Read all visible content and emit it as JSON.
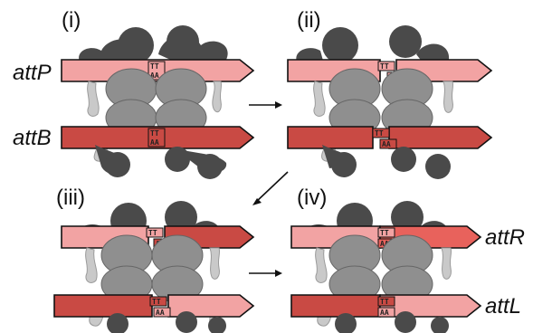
{
  "panels": [
    {
      "label": "(i)",
      "top": "attP",
      "bottom": "attB",
      "top_tt": "TT",
      "top_aa": "AA",
      "bot_tt": "TT",
      "bot_aa": "AA"
    },
    {
      "label": "(ii)",
      "top_tt": "TT",
      "top_aa": "AA",
      "bot_tt": "TT",
      "bot_aa": "AA"
    },
    {
      "label": "(iii)",
      "top_tt": "TT",
      "top_aa": "AA",
      "bot_tt": "TT",
      "bot_aa": "AA"
    },
    {
      "label": "(iv)",
      "top": "attR",
      "bottom": "attL",
      "top_tt": "TT",
      "top_aa": "AA",
      "bot_tt": "TT",
      "bot_aa": "AA"
    }
  ],
  "colors": {
    "attP": "#f2a3a3",
    "attB": "#c94a44",
    "attR_right": "#e8625c",
    "protein_dark": "#4a4a4a",
    "protein_mid": "#8f8f8f",
    "protein_light": "#c9c9c9"
  }
}
